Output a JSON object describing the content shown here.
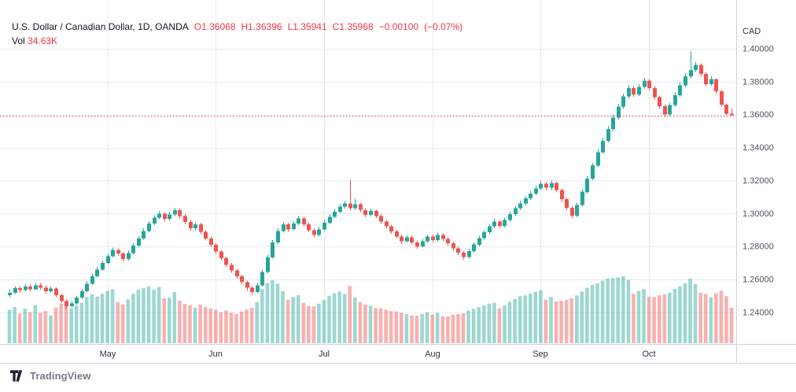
{
  "header": {
    "title": "U.S. Dollar / Canadian Dollar, 1D, OANDA",
    "ohlc": [
      {
        "label": "O",
        "value": "1.36068"
      },
      {
        "label": "H",
        "value": "1.36396"
      },
      {
        "label": "L",
        "value": "1.35941"
      },
      {
        "label": "C",
        "value": "1.35968"
      }
    ],
    "change": "−0.00100",
    "change_pct": "(−0.07%)",
    "vol_label": "Vol",
    "vol_value": "34.63K"
  },
  "footer": {
    "logo_text": "TradingView"
  },
  "colors": {
    "up": "#26a69a",
    "down": "#ef5350",
    "vol_up": "rgba(38,166,154,0.45)",
    "vol_down": "rgba(239,83,80,0.45)",
    "grid": "#e7eaf0",
    "axis_border": "#d1d4dc",
    "axis_text": "#50535e",
    "time_text": "#2e333e",
    "title_text": "#131722",
    "value_red": "#f23645",
    "last_line": "#f23645",
    "logo_text": "#787b86",
    "logo_mark": "#1d2330"
  },
  "chart_data": {
    "type": "candlestick",
    "title": "U.S. Dollar / Canadian Dollar, 1D, OANDA",
    "symbol": "USD/CAD",
    "interval": "1D",
    "exchange": "OANDA",
    "currency": "CAD",
    "legend_last": {
      "open": 1.36068,
      "high": 1.36396,
      "low": 1.35941,
      "close": 1.35968,
      "change": -0.001,
      "change_pct": -0.07,
      "volume_k": 34.63
    },
    "last_price_line": 1.35968,
    "visible_price_range": [
      1.2209,
      1.4296
    ],
    "grid": true,
    "volume_axis_max_k": 65,
    "price_ticks": [
      {
        "label": "1.40000",
        "value": 1.4
      },
      {
        "label": "1.38000",
        "value": 1.38
      },
      {
        "label": "1.36000",
        "value": 1.36
      },
      {
        "label": "1.34000",
        "value": 1.34
      },
      {
        "label": "1.32000",
        "value": 1.32
      },
      {
        "label": "1.30000",
        "value": 1.3
      },
      {
        "label": "1.28000",
        "value": 1.28
      },
      {
        "label": "1.26000",
        "value": 1.26
      },
      {
        "label": "1.24000",
        "value": 1.24
      }
    ],
    "months": [
      {
        "label": "May",
        "index": 19
      },
      {
        "label": "Jun",
        "index": 40
      },
      {
        "label": "Jul",
        "index": 61
      },
      {
        "label": "Aug",
        "index": 82
      },
      {
        "label": "Sep",
        "index": 103
      },
      {
        "label": "Oct",
        "index": 124
      }
    ],
    "candles": {
      "columns": [
        "open",
        "high",
        "low",
        "close",
        "volume_k"
      ],
      "rows": [
        [
          1.2505,
          1.2538,
          1.2492,
          1.252,
          32.4
        ],
        [
          1.252,
          1.256,
          1.2512,
          1.2548,
          35.1
        ],
        [
          1.2548,
          1.2561,
          1.252,
          1.2535,
          28.8
        ],
        [
          1.2535,
          1.2572,
          1.2528,
          1.2558,
          33.5
        ],
        [
          1.2558,
          1.257,
          1.253,
          1.2542,
          30.2
        ],
        [
          1.2542,
          1.258,
          1.2535,
          1.2565,
          36.9
        ],
        [
          1.2565,
          1.2578,
          1.2538,
          1.255,
          29.6
        ],
        [
          1.255,
          1.2562,
          1.2514,
          1.2528,
          31.3
        ],
        [
          1.2528,
          1.2558,
          1.252,
          1.2545,
          27.0
        ],
        [
          1.2545,
          1.2552,
          1.2492,
          1.2505,
          34.7
        ],
        [
          1.2505,
          1.2515,
          1.2458,
          1.247,
          38.4
        ],
        [
          1.247,
          1.248,
          1.2422,
          1.2438,
          41.1
        ],
        [
          1.2438,
          1.247,
          1.2428,
          1.2455,
          33.8
        ],
        [
          1.2455,
          1.2502,
          1.2446,
          1.249,
          36.5
        ],
        [
          1.249,
          1.2544,
          1.2482,
          1.253,
          39.2
        ],
        [
          1.253,
          1.259,
          1.2522,
          1.2575,
          44.9
        ],
        [
          1.2575,
          1.2634,
          1.2566,
          1.262,
          47.6
        ],
        [
          1.262,
          1.2676,
          1.2612,
          1.266,
          45.3
        ],
        [
          1.266,
          1.2715,
          1.2652,
          1.27,
          48.0
        ],
        [
          1.27,
          1.2756,
          1.2692,
          1.2742,
          50.7
        ],
        [
          1.2742,
          1.2794,
          1.2734,
          1.278,
          52.4
        ],
        [
          1.278,
          1.279,
          1.2744,
          1.2758,
          40.1
        ],
        [
          1.2758,
          1.2768,
          1.271,
          1.2725,
          37.8
        ],
        [
          1.2725,
          1.2774,
          1.2716,
          1.276,
          42.5
        ],
        [
          1.276,
          1.282,
          1.2752,
          1.2805,
          48.2
        ],
        [
          1.2805,
          1.2864,
          1.2796,
          1.285,
          51.9
        ],
        [
          1.285,
          1.291,
          1.2842,
          1.2895,
          53.6
        ],
        [
          1.2895,
          1.2955,
          1.2886,
          1.294,
          55.3
        ],
        [
          1.294,
          1.299,
          1.293,
          1.2975,
          52.0
        ],
        [
          1.2975,
          1.3016,
          1.2966,
          1.3,
          54.7
        ],
        [
          1.3,
          1.301,
          1.2952,
          1.2968,
          43.4
        ],
        [
          1.2968,
          1.3008,
          1.2958,
          1.2995,
          44.1
        ],
        [
          1.2995,
          1.3036,
          1.2986,
          1.302,
          49.8
        ],
        [
          1.302,
          1.303,
          1.297,
          1.2985,
          41.5
        ],
        [
          1.2985,
          1.2996,
          1.2936,
          1.295,
          38.2
        ],
        [
          1.295,
          1.296,
          1.2896,
          1.291,
          36.9
        ],
        [
          1.291,
          1.2948,
          1.29,
          1.2935,
          34.6
        ],
        [
          1.2935,
          1.2944,
          1.2876,
          1.289,
          37.3
        ],
        [
          1.289,
          1.29,
          1.2836,
          1.285,
          35.0
        ],
        [
          1.285,
          1.286,
          1.2796,
          1.281,
          33.7
        ],
        [
          1.281,
          1.282,
          1.2756,
          1.277,
          32.4
        ],
        [
          1.277,
          1.278,
          1.2716,
          1.273,
          30.1
        ],
        [
          1.273,
          1.274,
          1.2676,
          1.269,
          31.8
        ],
        [
          1.269,
          1.27,
          1.264,
          1.2655,
          29.5
        ],
        [
          1.2655,
          1.2664,
          1.2606,
          1.262,
          28.2
        ],
        [
          1.262,
          1.263,
          1.257,
          1.2585,
          30.9
        ],
        [
          1.2585,
          1.2594,
          1.2534,
          1.255,
          32.6
        ],
        [
          1.255,
          1.256,
          1.2508,
          1.2525,
          34.3
        ],
        [
          1.2525,
          1.258,
          1.2516,
          1.2565,
          40.0
        ],
        [
          1.2565,
          1.266,
          1.2556,
          1.2645,
          52.7
        ],
        [
          1.2645,
          1.275,
          1.2636,
          1.2735,
          58.4
        ],
        [
          1.2735,
          1.284,
          1.2726,
          1.2825,
          61.1
        ],
        [
          1.2825,
          1.2912,
          1.2816,
          1.2895,
          57.8
        ],
        [
          1.2895,
          1.295,
          1.2884,
          1.2935,
          50.5
        ],
        [
          1.2935,
          1.2944,
          1.289,
          1.2905,
          42.2
        ],
        [
          1.2905,
          1.2955,
          1.2896,
          1.294,
          44.9
        ],
        [
          1.294,
          1.2986,
          1.293,
          1.297,
          46.6
        ],
        [
          1.297,
          1.298,
          1.292,
          1.2935,
          39.3
        ],
        [
          1.2935,
          1.2946,
          1.2886,
          1.29,
          36.0
        ],
        [
          1.29,
          1.291,
          1.2856,
          1.287,
          35.7
        ],
        [
          1.287,
          1.292,
          1.2862,
          1.2905,
          38.4
        ],
        [
          1.2905,
          1.296,
          1.2896,
          1.2945,
          42.1
        ],
        [
          1.2945,
          1.2996,
          1.2936,
          1.298,
          45.8
        ],
        [
          1.298,
          1.3028,
          1.2972,
          1.3012,
          48.5
        ],
        [
          1.3012,
          1.3058,
          1.3002,
          1.3042,
          50.2
        ],
        [
          1.3042,
          1.3078,
          1.303,
          1.3062,
          47.9
        ],
        [
          1.3062,
          1.3205,
          1.302,
          1.3032,
          55.6
        ],
        [
          1.3032,
          1.309,
          1.3022,
          1.3056,
          44.3
        ],
        [
          1.3056,
          1.3066,
          1.3008,
          1.3022,
          40.0
        ],
        [
          1.3022,
          1.3032,
          1.2978,
          1.2992,
          37.7
        ],
        [
          1.2992,
          1.303,
          1.2982,
          1.3016,
          36.4
        ],
        [
          1.3016,
          1.3026,
          1.2972,
          1.2986,
          34.1
        ],
        [
          1.2986,
          1.2996,
          1.2938,
          1.2952,
          33.8
        ],
        [
          1.2952,
          1.2962,
          1.2908,
          1.2922,
          32.5
        ],
        [
          1.2922,
          1.2932,
          1.2878,
          1.2892,
          31.2
        ],
        [
          1.2892,
          1.2902,
          1.2848,
          1.2862,
          30.9
        ],
        [
          1.2862,
          1.2872,
          1.2818,
          1.2832,
          29.6
        ],
        [
          1.2832,
          1.287,
          1.2824,
          1.2856,
          28.3
        ],
        [
          1.2856,
          1.2866,
          1.2812,
          1.2826,
          27.0
        ],
        [
          1.2826,
          1.2836,
          1.2788,
          1.2802,
          26.7
        ],
        [
          1.2802,
          1.2846,
          1.2794,
          1.2832,
          28.4
        ],
        [
          1.2832,
          1.2874,
          1.2822,
          1.286,
          30.1
        ],
        [
          1.286,
          1.2872,
          1.2826,
          1.284,
          27.8
        ],
        [
          1.284,
          1.2884,
          1.283,
          1.287,
          29.5
        ],
        [
          1.287,
          1.288,
          1.2832,
          1.2846,
          26.2
        ],
        [
          1.2846,
          1.2856,
          1.2806,
          1.282,
          25.9
        ],
        [
          1.282,
          1.283,
          1.2776,
          1.279,
          27.6
        ],
        [
          1.279,
          1.28,
          1.2748,
          1.2762,
          28.3
        ],
        [
          1.2762,
          1.2772,
          1.272,
          1.2736,
          29.0
        ],
        [
          1.2736,
          1.2786,
          1.2726,
          1.2772,
          31.7
        ],
        [
          1.2772,
          1.2826,
          1.2762,
          1.2812,
          33.4
        ],
        [
          1.2812,
          1.2866,
          1.2802,
          1.2852,
          35.1
        ],
        [
          1.2852,
          1.29,
          1.2842,
          1.2886,
          36.8
        ],
        [
          1.2886,
          1.2936,
          1.2876,
          1.2922,
          38.5
        ],
        [
          1.2922,
          1.2968,
          1.2912,
          1.2952,
          39.2
        ],
        [
          1.2952,
          1.2962,
          1.2912,
          1.2926,
          33.9
        ],
        [
          1.2926,
          1.2976,
          1.2916,
          1.2962,
          36.6
        ],
        [
          1.2962,
          1.3012,
          1.2952,
          1.2996,
          40.3
        ],
        [
          1.2996,
          1.3048,
          1.2986,
          1.3032,
          43.0
        ],
        [
          1.3032,
          1.3078,
          1.3022,
          1.3062,
          45.7
        ],
        [
          1.3062,
          1.3108,
          1.3052,
          1.3092,
          46.4
        ],
        [
          1.3092,
          1.3138,
          1.3082,
          1.3122,
          48.1
        ],
        [
          1.3122,
          1.3168,
          1.3112,
          1.3152,
          49.8
        ],
        [
          1.3152,
          1.3198,
          1.3142,
          1.3182,
          51.5
        ],
        [
          1.3182,
          1.3192,
          1.3142,
          1.3156,
          42.2
        ],
        [
          1.3156,
          1.3202,
          1.3146,
          1.3186,
          44.9
        ],
        [
          1.3186,
          1.3196,
          1.3128,
          1.3142,
          40.6
        ],
        [
          1.3142,
          1.3152,
          1.3074,
          1.3088,
          41.3
        ],
        [
          1.3088,
          1.3098,
          1.3022,
          1.3036,
          42.0
        ],
        [
          1.3036,
          1.3046,
          1.2972,
          1.2988,
          43.7
        ],
        [
          1.2988,
          1.3066,
          1.2978,
          1.3052,
          46.4
        ],
        [
          1.3052,
          1.3148,
          1.3042,
          1.3132,
          50.1
        ],
        [
          1.3132,
          1.3228,
          1.3122,
          1.3212,
          53.8
        ],
        [
          1.3212,
          1.3308,
          1.3202,
          1.3292,
          56.5
        ],
        [
          1.3292,
          1.339,
          1.3282,
          1.3372,
          58.2
        ],
        [
          1.3372,
          1.346,
          1.3362,
          1.3442,
          60.9
        ],
        [
          1.3442,
          1.353,
          1.3432,
          1.3512,
          62.6
        ],
        [
          1.3512,
          1.36,
          1.3502,
          1.3582,
          63.3
        ],
        [
          1.3582,
          1.3666,
          1.3572,
          1.3648,
          64.0
        ],
        [
          1.3648,
          1.3728,
          1.3638,
          1.371,
          65.0
        ],
        [
          1.371,
          1.378,
          1.37,
          1.3762,
          61.4
        ],
        [
          1.3762,
          1.3772,
          1.3708,
          1.3724,
          48.1
        ],
        [
          1.3724,
          1.3786,
          1.3714,
          1.3768,
          50.8
        ],
        [
          1.3768,
          1.3824,
          1.3758,
          1.3806,
          52.5
        ],
        [
          1.3806,
          1.3816,
          1.3748,
          1.3762,
          45.2
        ],
        [
          1.3762,
          1.3772,
          1.3692,
          1.3706,
          44.9
        ],
        [
          1.3706,
          1.3716,
          1.3638,
          1.3652,
          46.6
        ],
        [
          1.3652,
          1.3662,
          1.3588,
          1.3602,
          47.3
        ],
        [
          1.3602,
          1.3674,
          1.3592,
          1.3658,
          49.0
        ],
        [
          1.3658,
          1.3734,
          1.3648,
          1.3718,
          52.7
        ],
        [
          1.3718,
          1.3794,
          1.3708,
          1.3778,
          55.4
        ],
        [
          1.3778,
          1.385,
          1.3768,
          1.3832,
          58.1
        ],
        [
          1.3832,
          1.3986,
          1.3822,
          1.3872,
          62.8
        ],
        [
          1.3872,
          1.392,
          1.3858,
          1.3902,
          57.5
        ],
        [
          1.3902,
          1.3912,
          1.3834,
          1.3848,
          49.2
        ],
        [
          1.3848,
          1.3858,
          1.3772,
          1.3786,
          47.9
        ],
        [
          1.3786,
          1.3832,
          1.3776,
          1.3815,
          44.6
        ],
        [
          1.3815,
          1.3822,
          1.3728,
          1.3742,
          48.3
        ],
        [
          1.3742,
          1.375,
          1.3648,
          1.3661,
          51.0
        ],
        [
          1.3661,
          1.3668,
          1.3596,
          1.3607,
          45.7
        ],
        [
          1.36068,
          1.36396,
          1.35941,
          1.35968,
          34.63
        ]
      ]
    }
  }
}
